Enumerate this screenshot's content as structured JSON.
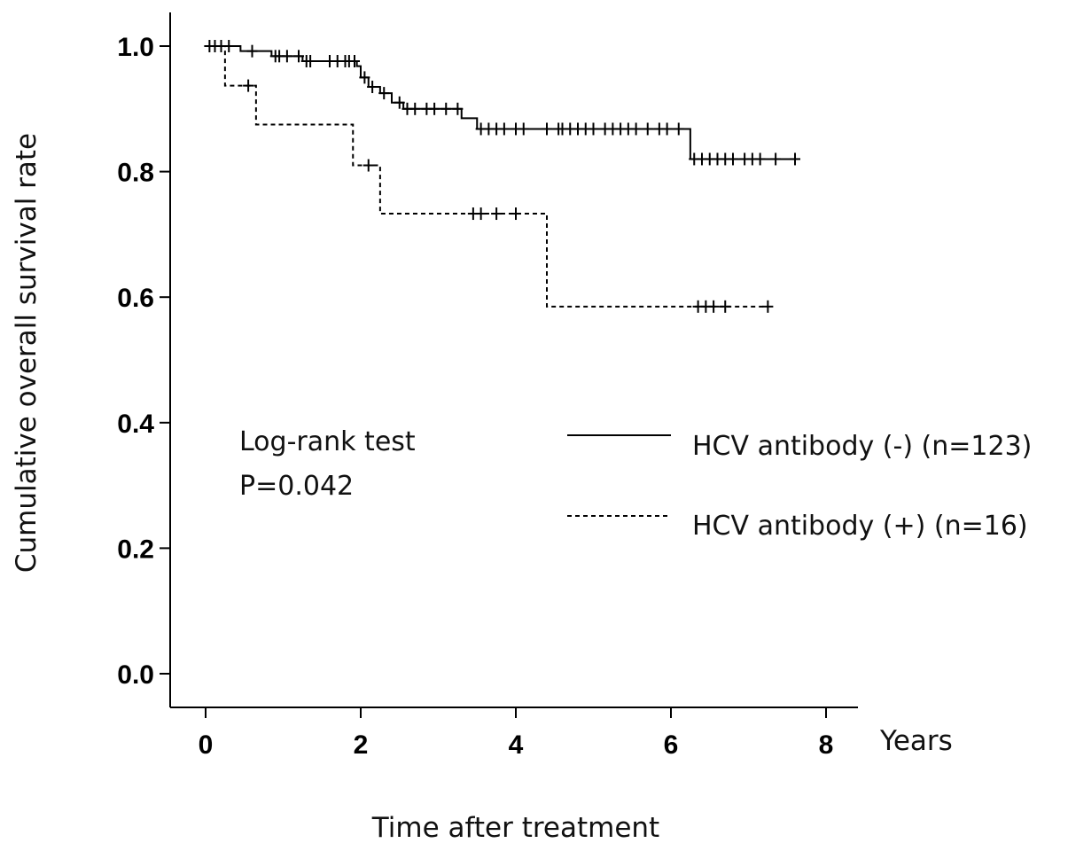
{
  "chart_data": {
    "type": "line",
    "subtype": "kaplan-meier",
    "title": "",
    "xlabel": "Time after treatment",
    "xunit": "Years",
    "ylabel": "Cumulative overall survival rate",
    "xlim": [
      -0.45,
      8.9
    ],
    "ylim": [
      -0.05,
      1.04
    ],
    "xticks": [
      0,
      2,
      4,
      6,
      8
    ],
    "xtick_labels": [
      "0",
      "2",
      "4",
      "6",
      "8"
    ],
    "yticks": [
      0.0,
      0.2,
      0.4,
      0.6,
      0.8,
      1.0
    ],
    "ytick_labels": [
      "0.0",
      "0.2",
      "0.4",
      "0.6",
      "0.8",
      "1.0"
    ],
    "grid": false,
    "legend_position": "right-middle",
    "annotation": {
      "line1": "Log-rank test",
      "line2": "P=0.042"
    },
    "series": [
      {
        "name": "HCV antibody (-) (n=123)",
        "style": "solid",
        "color": "#000000",
        "steps": [
          [
            0,
            1.0
          ],
          [
            0.45,
            0.992
          ],
          [
            0.85,
            0.984
          ],
          [
            1.25,
            0.976
          ],
          [
            1.95,
            0.968
          ],
          [
            2.0,
            0.95
          ],
          [
            2.1,
            0.935
          ],
          [
            2.25,
            0.925
          ],
          [
            2.4,
            0.91
          ],
          [
            2.55,
            0.9
          ],
          [
            3.3,
            0.885
          ],
          [
            3.5,
            0.868
          ],
          [
            6.25,
            0.82
          ],
          [
            7.6,
            0.82
          ]
        ],
        "censored": [
          0.05,
          0.12,
          0.2,
          0.3,
          0.6,
          0.9,
          0.95,
          1.05,
          1.2,
          1.3,
          1.35,
          1.6,
          1.7,
          1.8,
          1.85,
          1.92,
          2.05,
          2.15,
          2.3,
          2.5,
          2.6,
          2.7,
          2.85,
          2.95,
          3.1,
          3.25,
          3.55,
          3.65,
          3.75,
          3.85,
          4.0,
          4.1,
          4.4,
          4.55,
          4.6,
          4.7,
          4.8,
          4.9,
          5.0,
          5.15,
          5.25,
          5.35,
          5.45,
          5.55,
          5.7,
          5.85,
          5.95,
          6.1,
          6.3,
          6.4,
          6.5,
          6.6,
          6.7,
          6.8,
          6.95,
          7.05,
          7.15,
          7.35,
          7.6
        ]
      },
      {
        "name": "HCV antibody (+) (n=16)",
        "style": "dashed",
        "color": "#000000",
        "steps": [
          [
            0,
            1.0
          ],
          [
            0.25,
            0.937
          ],
          [
            0.65,
            0.875
          ],
          [
            1.9,
            0.81
          ],
          [
            2.25,
            0.733
          ],
          [
            4.4,
            0.585
          ],
          [
            7.25,
            0.585
          ]
        ],
        "censored": [
          0.55,
          2.1,
          3.45,
          3.55,
          3.75,
          4.0,
          6.35,
          6.45,
          6.55,
          6.7,
          7.25
        ]
      }
    ]
  }
}
